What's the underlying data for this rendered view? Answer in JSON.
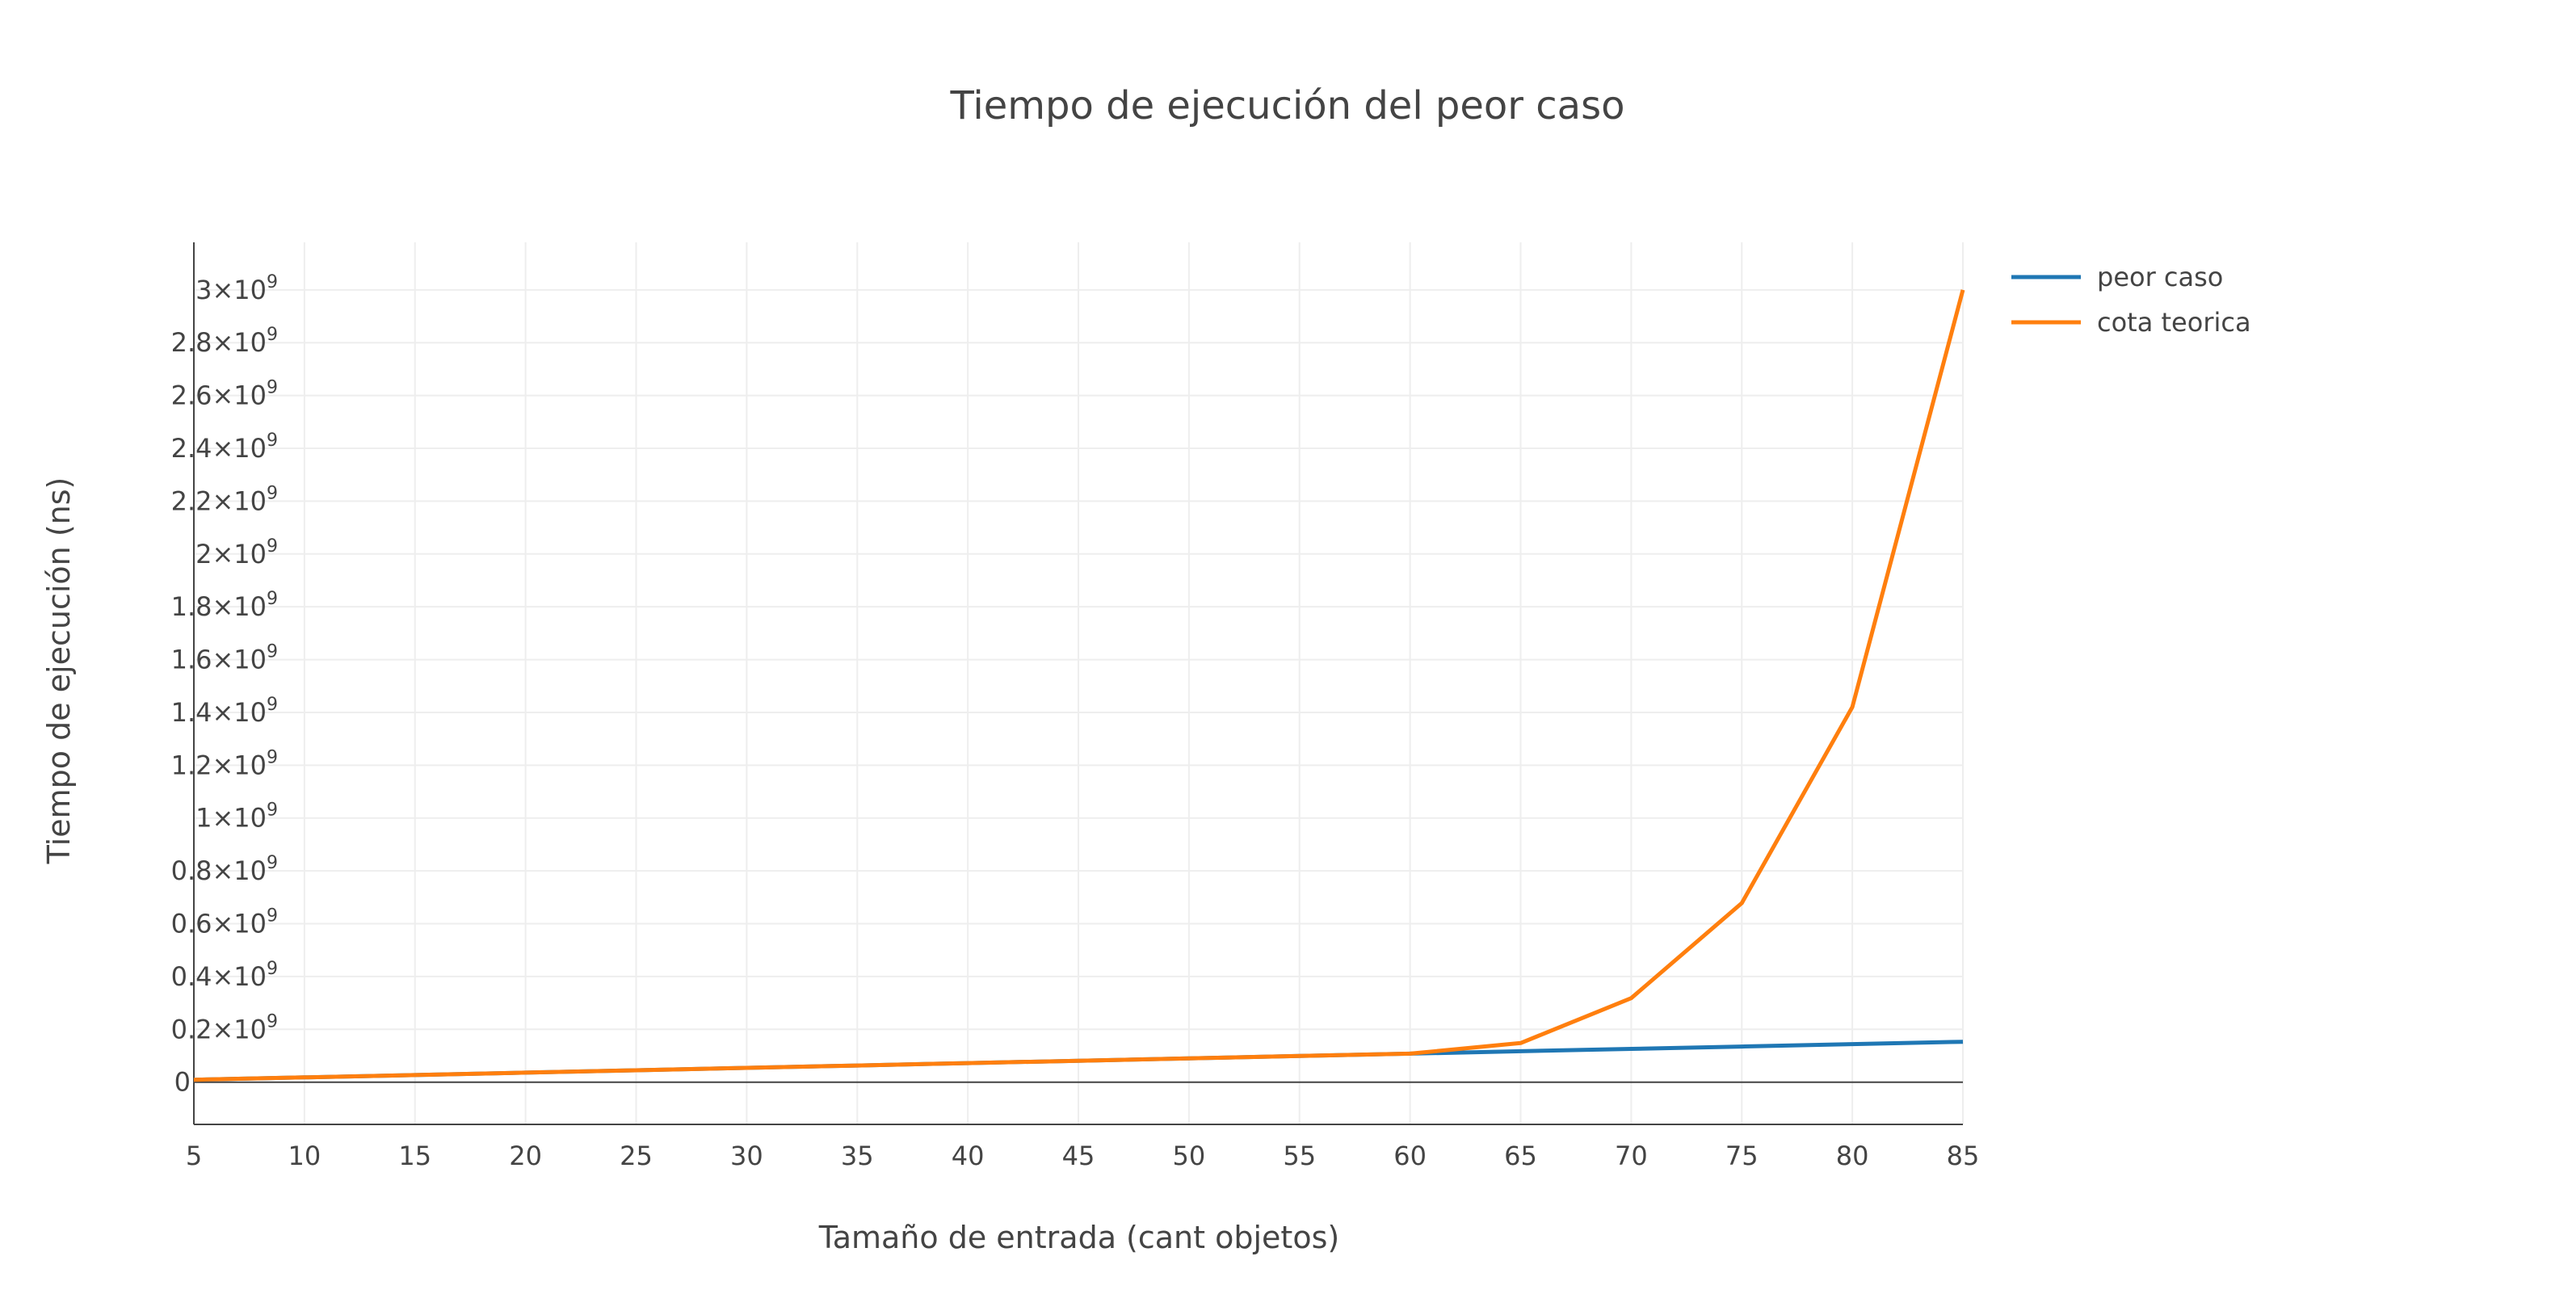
{
  "chart_data": {
    "type": "line",
    "title": "Tiempo de ejecución del peor caso",
    "xlabel": "Tamaño de entrada (cant objetos)",
    "ylabel": "Tiempo de ejecución (ns)",
    "x": [
      5,
      10,
      15,
      20,
      25,
      30,
      35,
      40,
      45,
      50,
      55,
      60,
      65,
      70,
      75,
      80,
      85
    ],
    "xlim": [
      5,
      85
    ],
    "ylim": [
      -160000000,
      3180000000
    ],
    "x_ticks": [
      "5",
      "10",
      "15",
      "20",
      "25",
      "30",
      "35",
      "40",
      "45",
      "50",
      "55",
      "60",
      "65",
      "70",
      "75",
      "80",
      "85"
    ],
    "y_ticks": [
      {
        "value": 0,
        "mantissa": "0",
        "exponent": ""
      },
      {
        "value": 200000000,
        "mantissa": "0.2×10",
        "exponent": "9"
      },
      {
        "value": 400000000,
        "mantissa": "0.4×10",
        "exponent": "9"
      },
      {
        "value": 600000000,
        "mantissa": "0.6×10",
        "exponent": "9"
      },
      {
        "value": 800000000,
        "mantissa": "0.8×10",
        "exponent": "9"
      },
      {
        "value": 1000000000,
        "mantissa": "1×10",
        "exponent": "9"
      },
      {
        "value": 1200000000,
        "mantissa": "1.2×10",
        "exponent": "9"
      },
      {
        "value": 1400000000,
        "mantissa": "1.4×10",
        "exponent": "9"
      },
      {
        "value": 1600000000,
        "mantissa": "1.6×10",
        "exponent": "9"
      },
      {
        "value": 1800000000,
        "mantissa": "1.8×10",
        "exponent": "9"
      },
      {
        "value": 2000000000,
        "mantissa": "2×10",
        "exponent": "9"
      },
      {
        "value": 2200000000,
        "mantissa": "2.2×10",
        "exponent": "9"
      },
      {
        "value": 2400000000,
        "mantissa": "2.4×10",
        "exponent": "9"
      },
      {
        "value": 2600000000,
        "mantissa": "2.6×10",
        "exponent": "9"
      },
      {
        "value": 2800000000,
        "mantissa": "2.8×10",
        "exponent": "9"
      },
      {
        "value": 3000000000,
        "mantissa": "3×10",
        "exponent": "9"
      }
    ],
    "grid": true,
    "legend_position": "top-right",
    "series": [
      {
        "name": "peor caso",
        "color": "#1f77b4",
        "values": [
          9000000,
          18000000,
          27000000,
          36000000,
          45000000,
          54000000,
          63000000,
          72000000,
          81000000,
          90000000,
          99000000,
          108000000,
          117000000,
          126000000,
          135000000,
          144000000,
          153000000
        ]
      },
      {
        "name": "cota teorica",
        "color": "#ff7f0e",
        "values": [
          9000000,
          18000000,
          27000000,
          36000000,
          45000000,
          54000000,
          63000000,
          72000000,
          81000000,
          90000000,
          99000000,
          108000000,
          148000000,
          318000000,
          678000000,
          1420000000,
          3000000000
        ]
      }
    ]
  }
}
